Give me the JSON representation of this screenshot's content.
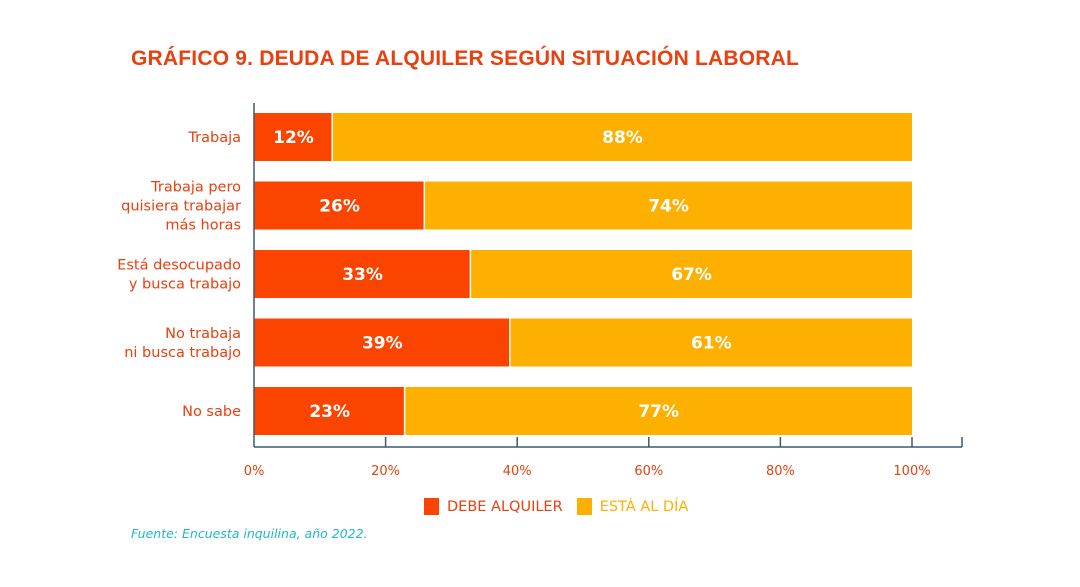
{
  "title": "GRÁFICO 9. DEUDA DE ALQUILER SEGÚN SITUACIÓN LABORAL",
  "source": "Fuente: Encuesta inquilina, año 2022.",
  "colors": {
    "debe": "#fc4401",
    "al_dia": "#feb000",
    "text": "#e8400e",
    "axis": "#3c5a74",
    "source": "#1fb8c8"
  },
  "legend": [
    {
      "label": "DEBE ALQUILER",
      "color": "#fc4401"
    },
    {
      "label": "ESTÁ AL DÍA",
      "color": "#feb000"
    }
  ],
  "chart_data": {
    "type": "bar",
    "orientation": "horizontal",
    "stacked": true,
    "title": "GRÁFICO 9. DEUDA DE ALQUILER SEGÚN SITUACIÓN LABORAL",
    "categories": [
      [
        "Trabaja"
      ],
      [
        "Trabaja pero",
        "quisiera trabajar",
        "más horas"
      ],
      [
        "Está desocupado",
        "y busca trabajo"
      ],
      [
        "No trabaja",
        "ni busca trabajo"
      ],
      [
        "No sabe"
      ]
    ],
    "series": [
      {
        "name": "DEBE ALQUILER",
        "values": [
          12,
          26,
          33,
          39,
          23
        ]
      },
      {
        "name": "ESTÁ AL DÍA",
        "values": [
          88,
          74,
          67,
          61,
          77
        ]
      }
    ],
    "value_labels": [
      [
        "12%",
        "26%",
        "33%",
        "39%",
        "23%"
      ],
      [
        "88%",
        "74%",
        "67%",
        "61%",
        "77%"
      ]
    ],
    "xlim": [
      0,
      100
    ],
    "xticks": [
      0,
      20,
      40,
      60,
      80,
      100
    ],
    "xtick_labels": [
      "0%",
      "20%",
      "40%",
      "60%",
      "80%",
      "100%"
    ],
    "xlabel": "",
    "ylabel": "",
    "grid": false,
    "legend_position": "bottom-center"
  }
}
